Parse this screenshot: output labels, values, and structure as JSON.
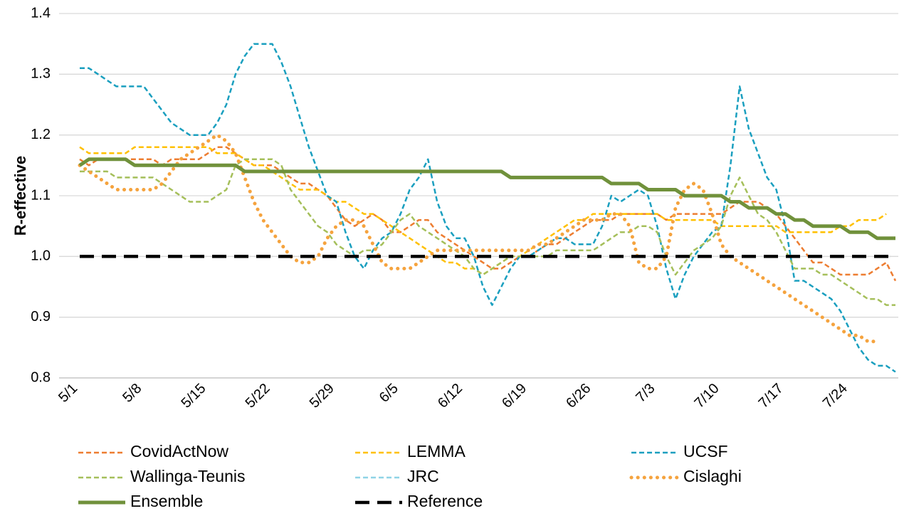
{
  "chart_data": {
    "type": "line",
    "ylabel": "R-effective",
    "categories": [
      "5/1",
      null,
      null,
      null,
      null,
      null,
      null,
      "5/8",
      null,
      null,
      null,
      null,
      null,
      null,
      "5/15",
      null,
      null,
      null,
      null,
      null,
      null,
      "5/22",
      null,
      null,
      null,
      null,
      null,
      null,
      "5/29",
      null,
      null,
      null,
      null,
      null,
      null,
      "6/5",
      null,
      null,
      null,
      null,
      null,
      null,
      "6/12",
      null,
      null,
      null,
      null,
      null,
      null,
      "6/19",
      null,
      null,
      null,
      null,
      null,
      null,
      "6/26",
      null,
      null,
      null,
      null,
      null,
      null,
      "7/3",
      null,
      null,
      null,
      null,
      null,
      null,
      "7/10",
      null,
      null,
      null,
      null,
      null,
      null,
      "7/17",
      null,
      null,
      null,
      null,
      null,
      null,
      "7/24",
      null,
      null,
      null,
      null,
      null
    ],
    "ylim": [
      0.8,
      1.4
    ],
    "yticks": [
      0.8,
      0.9,
      {
        "value": 1,
        "label": "1.0"
      },
      1.1,
      1.2,
      1.3,
      1.4
    ],
    "grid": true,
    "legend": "bottom",
    "series": [
      {
        "name": "CovidActNow",
        "color": "#ed7d31",
        "style": "dashed",
        "values": [
          1.16,
          1.15,
          1.16,
          1.16,
          1.16,
          1.16,
          1.16,
          1.16,
          1.16,
          1.15,
          1.16,
          1.16,
          1.16,
          1.16,
          1.17,
          1.18,
          1.18,
          1.17,
          1.16,
          1.15,
          1.15,
          1.15,
          1.14,
          1.13,
          1.12,
          1.12,
          1.11,
          1.1,
          1.08,
          1.06,
          1.05,
          1.06,
          1.07,
          1.06,
          1.04,
          1.04,
          1.05,
          1.06,
          1.06,
          1.04,
          1.03,
          1.02,
          1.01,
          1.0,
          0.99,
          0.98,
          0.98,
          0.99,
          1.0,
          1.0,
          1.01,
          1.02,
          1.02,
          1.03,
          1.04,
          1.05,
          1.06,
          1.06,
          1.06,
          1.07,
          1.07,
          1.07,
          1.07,
          1.07,
          1.06,
          1.07,
          1.07,
          1.07,
          1.07,
          1.07,
          1.07,
          1.08,
          1.09,
          1.09,
          1.09,
          1.08,
          1.07,
          1.05,
          1.03,
          1.01,
          0.99,
          0.99,
          0.98,
          0.97,
          0.97,
          0.97,
          0.97,
          0.98,
          0.99,
          0.96
        ]
      },
      {
        "name": "LEMMA",
        "color": "#ffc000",
        "style": "dashed",
        "values": [
          1.18,
          1.17,
          1.17,
          1.17,
          1.17,
          1.17,
          1.18,
          1.18,
          1.18,
          1.18,
          1.18,
          1.18,
          1.18,
          1.18,
          1.18,
          1.17,
          1.17,
          1.17,
          1.16,
          1.15,
          1.15,
          1.14,
          1.13,
          1.12,
          1.11,
          1.11,
          1.11,
          1.1,
          1.09,
          1.09,
          1.08,
          1.07,
          1.07,
          1.06,
          1.05,
          1.04,
          1.03,
          1.02,
          1.01,
          1.0,
          0.99,
          0.99,
          0.98,
          0.98,
          0.97,
          0.98,
          0.99,
          1.0,
          1.0,
          1.01,
          1.02,
          1.03,
          1.04,
          1.05,
          1.06,
          1.06,
          1.07,
          1.07,
          1.07,
          1.07,
          1.07,
          1.07,
          1.07,
          1.07,
          1.06,
          1.06,
          1.06,
          1.06,
          1.06,
          1.06,
          1.05,
          1.05,
          1.05,
          1.05,
          1.05,
          1.05,
          1.05,
          1.04,
          1.04,
          1.04,
          1.04,
          1.04,
          1.04,
          1.05,
          1.05,
          1.06,
          1.06,
          1.06,
          1.07,
          null
        ]
      },
      {
        "name": "UCSF",
        "color": "#1a9fbf",
        "style": "dashed",
        "values": [
          1.31,
          1.31,
          1.3,
          1.29,
          1.28,
          1.28,
          1.28,
          1.28,
          1.26,
          1.24,
          1.22,
          1.21,
          1.2,
          1.2,
          1.2,
          1.22,
          1.25,
          1.3,
          1.33,
          1.35,
          1.35,
          1.35,
          1.32,
          1.28,
          1.23,
          1.18,
          1.14,
          1.1,
          1.09,
          1.04,
          1.0,
          0.98,
          1.01,
          1.03,
          1.04,
          1.07,
          1.11,
          1.13,
          1.16,
          1.09,
          1.05,
          1.03,
          1.03,
          1.0,
          0.95,
          0.92,
          0.95,
          0.98,
          1.0,
          1.0,
          1.01,
          1.02,
          1.03,
          1.03,
          1.02,
          1.02,
          1.02,
          1.05,
          1.1,
          1.09,
          1.1,
          1.11,
          1.1,
          1.05,
          0.98,
          0.93,
          0.97,
          1.0,
          1.02,
          1.04,
          1.05,
          1.15,
          1.28,
          1.21,
          1.17,
          1.13,
          1.11,
          1.05,
          0.96,
          0.96,
          0.95,
          0.94,
          0.93,
          0.91,
          0.88,
          0.85,
          0.83,
          0.82,
          0.82,
          0.81
        ]
      },
      {
        "name": "Wallinga-Teunis",
        "color": "#a5bf5a",
        "style": "dashed",
        "values": [
          1.14,
          1.14,
          1.14,
          1.14,
          1.13,
          1.13,
          1.13,
          1.13,
          1.13,
          1.12,
          1.11,
          1.1,
          1.09,
          1.09,
          1.09,
          1.1,
          1.11,
          1.15,
          1.16,
          1.16,
          1.16,
          1.16,
          1.15,
          1.11,
          1.09,
          1.07,
          1.05,
          1.04,
          1.02,
          1.01,
          1.0,
          1.01,
          1.01,
          1.02,
          1.04,
          1.06,
          1.07,
          1.05,
          1.04,
          1.03,
          1.02,
          1.01,
          1.0,
          0.98,
          0.97,
          0.98,
          0.99,
          1.0,
          1.0,
          1.0,
          1.0,
          1.0,
          1.01,
          1.01,
          1.01,
          1.01,
          1.01,
          1.02,
          1.03,
          1.04,
          1.04,
          1.05,
          1.05,
          1.04,
          1.0,
          0.97,
          0.99,
          1.01,
          1.02,
          1.03,
          1.05,
          1.1,
          1.13,
          1.1,
          1.07,
          1.06,
          1.04,
          1.01,
          0.98,
          0.98,
          0.98,
          0.97,
          0.97,
          0.96,
          0.95,
          0.94,
          0.93,
          0.93,
          0.92,
          0.92
        ]
      },
      {
        "name": "JRC",
        "color": "#8fd3e6",
        "style": "dashed",
        "values": [
          null,
          null,
          null,
          null,
          null,
          null,
          null,
          null,
          null,
          null,
          null,
          null,
          null,
          null,
          null,
          null,
          null,
          null,
          null,
          null,
          null,
          null,
          null,
          null,
          null,
          null,
          null,
          null,
          null,
          null,
          null,
          null,
          null,
          null,
          null,
          null,
          null,
          null,
          null,
          null,
          null,
          null,
          null,
          null,
          null,
          null,
          null,
          null,
          null,
          null,
          null,
          null,
          null,
          null,
          null,
          null,
          null,
          null,
          null,
          null,
          null,
          null,
          null,
          null,
          null,
          null,
          null,
          null,
          null,
          null,
          null,
          null,
          null,
          null,
          null,
          null,
          null,
          null,
          null,
          null,
          null,
          null,
          null,
          null,
          null,
          null,
          null,
          null,
          null,
          null
        ]
      },
      {
        "name": "Cislaghi",
        "color": "#f5a33e",
        "style": "dotted",
        "values": [
          1.15,
          1.14,
          1.13,
          1.12,
          1.11,
          1.11,
          1.11,
          1.11,
          1.11,
          1.12,
          1.14,
          1.16,
          1.17,
          1.18,
          1.19,
          1.2,
          1.19,
          1.17,
          1.13,
          1.09,
          1.06,
          1.04,
          1.02,
          1.0,
          0.99,
          0.99,
          1.0,
          1.03,
          1.05,
          1.06,
          1.06,
          1.05,
          1.02,
          0.99,
          0.98,
          0.98,
          0.98,
          0.99,
          1.0,
          1.01,
          1.01,
          1.01,
          1.01,
          1.01,
          1.01,
          1.01,
          1.01,
          1.01,
          1.01,
          1.01,
          1.02,
          1.02,
          1.03,
          1.04,
          1.05,
          1.06,
          1.06,
          1.06,
          1.07,
          1.07,
          1.05,
          0.99,
          0.98,
          0.98,
          1.0,
          1.08,
          1.11,
          1.12,
          1.11,
          1.07,
          1.02,
          1.0,
          0.99,
          0.98,
          0.97,
          0.96,
          0.95,
          0.94,
          0.93,
          0.92,
          0.91,
          0.9,
          0.89,
          0.88,
          0.87,
          0.87,
          0.86,
          0.86,
          null,
          null
        ]
      },
      {
        "name": "Ensemble",
        "color": "#70913b",
        "style": "solid",
        "values": [
          1.15,
          1.16,
          1.16,
          1.16,
          1.16,
          1.16,
          1.15,
          1.15,
          1.15,
          1.15,
          1.15,
          1.15,
          1.15,
          1.15,
          1.15,
          1.15,
          1.15,
          1.15,
          1.14,
          1.14,
          1.14,
          1.14,
          1.14,
          1.14,
          1.14,
          1.14,
          1.14,
          1.14,
          1.14,
          1.14,
          1.14,
          1.14,
          1.14,
          1.14,
          1.14,
          1.14,
          1.14,
          1.14,
          1.14,
          1.14,
          1.14,
          1.14,
          1.14,
          1.14,
          1.14,
          1.14,
          1.14,
          1.13,
          1.13,
          1.13,
          1.13,
          1.13,
          1.13,
          1.13,
          1.13,
          1.13,
          1.13,
          1.13,
          1.12,
          1.12,
          1.12,
          1.12,
          1.11,
          1.11,
          1.11,
          1.11,
          1.1,
          1.1,
          1.1,
          1.1,
          1.1,
          1.09,
          1.09,
          1.08,
          1.08,
          1.08,
          1.07,
          1.07,
          1.06,
          1.06,
          1.05,
          1.05,
          1.05,
          1.05,
          1.04,
          1.04,
          1.04,
          1.03,
          1.03,
          1.03
        ]
      },
      {
        "name": "Reference",
        "color": "#000000",
        "style": "longdash",
        "values": [
          1,
          1,
          1,
          1,
          1,
          1,
          1,
          1,
          1,
          1,
          1,
          1,
          1,
          1,
          1,
          1,
          1,
          1,
          1,
          1,
          1,
          1,
          1,
          1,
          1,
          1,
          1,
          1,
          1,
          1,
          1,
          1,
          1,
          1,
          1,
          1,
          1,
          1,
          1,
          1,
          1,
          1,
          1,
          1,
          1,
          1,
          1,
          1,
          1,
          1,
          1,
          1,
          1,
          1,
          1,
          1,
          1,
          1,
          1,
          1,
          1,
          1,
          1,
          1,
          1,
          1,
          1,
          1,
          1,
          1,
          1,
          1,
          1,
          1,
          1,
          1,
          1,
          1,
          1,
          1,
          1,
          1,
          1,
          1,
          1,
          1,
          1,
          1,
          1,
          1
        ]
      }
    ]
  }
}
